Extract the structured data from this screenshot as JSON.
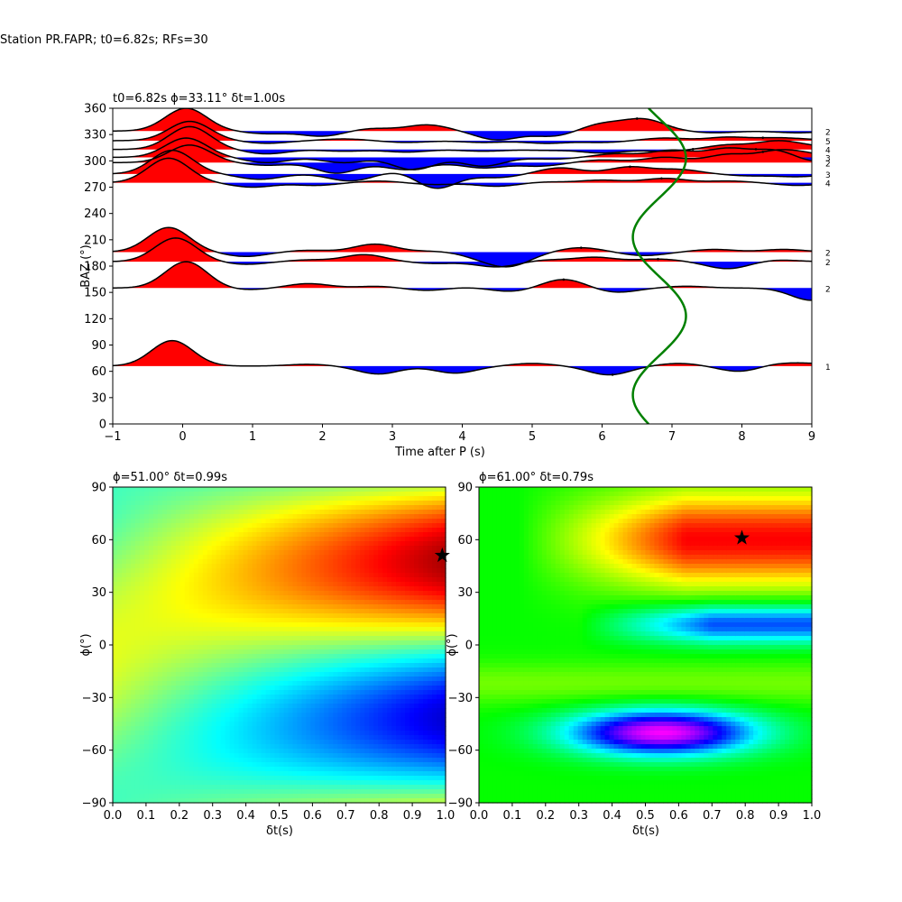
{
  "suptitle": "Station PR.FAPR; t0=6.82s; RFs=30",
  "chart_data": [
    {
      "type": "line",
      "title": "t0=6.82s ϕ=33.11° δt=1.00s",
      "xlabel": "Time after P (s)",
      "ylabel": "BAZ (°)",
      "xlim": [
        -1,
        9
      ],
      "ylim": [
        0,
        360
      ],
      "xticks": [
        "−1",
        "0",
        "1",
        "2",
        "3",
        "4",
        "5",
        "6",
        "7",
        "8",
        "9"
      ],
      "yticks": [
        "0",
        "30",
        "60",
        "90",
        "120",
        "150",
        "180",
        "210",
        "240",
        "270",
        "300",
        "330",
        "360"
      ],
      "fill_colors": {
        "positive": "#ff0000",
        "negative": "#0000ff",
        "trace": "#000000",
        "curve": "#008000"
      },
      "traces": [
        {
          "baz": 66,
          "count": "1",
          "pulse_amp": 29,
          "pulse_t": -0.15,
          "amps": [
            2,
            -9,
            -8,
            3,
            -10,
            3,
            -7,
            3,
            1,
            2
          ],
          "times": [
            1.8,
            2.8,
            3.9,
            5.0,
            6.1,
            7.1,
            8.0,
            8.4,
            8.8,
            9.0
          ],
          "pick": 6.15
        },
        {
          "baz": 155,
          "count": "2",
          "pulse_amp": 30,
          "pulse_t": 0.05,
          "amps": [
            -2,
            5,
            2,
            -3,
            1,
            -4,
            10,
            -5,
            2,
            -14
          ],
          "times": [
            0.9,
            1.8,
            2.8,
            3.5,
            4.0,
            4.7,
            5.45,
            6.2,
            7.2,
            9.0
          ],
          "pick": 5.45
        },
        {
          "baz": 185,
          "count": "2",
          "pulse_amp": 27,
          "pulse_t": -0.1,
          "amps": [
            -3,
            2,
            8,
            -2,
            -6,
            2,
            5,
            3,
            -8,
            2
          ],
          "times": [
            0.9,
            1.8,
            2.6,
            3.6,
            4.5,
            5.2,
            5.9,
            6.8,
            7.8,
            8.5
          ],
          "pick": 6.8
        },
        {
          "baz": 196,
          "count": "2",
          "pulse_amp": 28,
          "pulse_t": -0.2,
          "amps": [
            -5,
            2,
            9,
            1,
            -6,
            -14,
            5,
            -4,
            3,
            3
          ],
          "times": [
            0.9,
            1.8,
            2.75,
            3.6,
            4.3,
            4.7,
            5.7,
            6.6,
            7.6,
            8.6
          ],
          "pick": 5.7
        },
        {
          "baz": 275,
          "count": "4",
          "pulse_amp": 28,
          "pulse_t": -0.2,
          "amps": [
            -5,
            -3,
            2,
            -2,
            -4,
            1,
            3,
            5,
            2,
            -3
          ],
          "times": [
            1.0,
            1.9,
            2.8,
            3.6,
            4.5,
            5.2,
            6.0,
            6.9,
            7.8,
            8.8
          ],
          "pick": 6.85
        },
        {
          "baz": 285,
          "count": "3",
          "pulse_amp": 27,
          "pulse_t": -0.15,
          "amps": [
            -6,
            -8,
            5,
            -18,
            -4,
            7,
            8,
            5,
            -2,
            -3
          ],
          "times": [
            1.1,
            2.4,
            3.2,
            3.6,
            4.5,
            5.4,
            6.4,
            7.1,
            8.1,
            8.8
          ],
          "pick": 6.4
        },
        {
          "baz": 298,
          "count": "2",
          "pulse_amp": 20,
          "pulse_t": 0.1,
          "amps": [
            -3,
            -12,
            -8,
            -6,
            -4,
            3,
            6,
            9,
            12,
            8
          ],
          "times": [
            1.2,
            2.2,
            3.2,
            4.3,
            5.1,
            6.0,
            6.9,
            7.8,
            8.5,
            9.0
          ],
          "pick": 8.3
        },
        {
          "baz": 304,
          "count": "3",
          "pulse_amp": 22,
          "pulse_t": 0.05,
          "amps": [
            -6,
            -6,
            -14,
            -10,
            -2,
            4,
            8,
            10,
            9,
            -6
          ],
          "times": [
            1.2,
            2.3,
            3.3,
            4.3,
            5.3,
            6.2,
            7.0,
            7.8,
            8.5,
            9.0
          ],
          "pick": 8.2
        },
        {
          "baz": 313,
          "count": "4",
          "pulse_amp": 26,
          "pulse_t": 0.1,
          "amps": [
            -5,
            -2,
            -3,
            -2,
            -1,
            -4,
            -2,
            5,
            9,
            3
          ],
          "times": [
            1.2,
            2.3,
            3.2,
            4.3,
            5.2,
            6.0,
            6.9,
            7.8,
            8.5,
            9.0
          ],
          "pick": 7.3
        },
        {
          "baz": 323,
          "count": "5",
          "pulse_amp": 22,
          "pulse_t": 0.1,
          "amps": [
            -3,
            2,
            -2,
            -2,
            -3,
            -2,
            3,
            4,
            3,
            1
          ],
          "times": [
            1.2,
            2.3,
            3.2,
            4.3,
            5.2,
            6.0,
            6.9,
            7.8,
            8.5,
            9.0
          ],
          "pick": 8.3
        },
        {
          "baz": 334,
          "count": "2",
          "pulse_amp": 26,
          "pulse_t": 0.05,
          "amps": [
            -3,
            -6,
            3,
            7,
            -10,
            -6,
            8,
            13,
            -2,
            -2
          ],
          "times": [
            1.2,
            2.0,
            2.7,
            3.5,
            4.5,
            5.3,
            6.0,
            6.6,
            7.6,
            8.8
          ],
          "pick": 6.5
        }
      ],
      "curve_period_deg": 180,
      "curve_center_s": 6.82,
      "curve_amplitude_s": 0.38,
      "curve_peak_baz_deg": 123
    },
    {
      "type": "heatmap",
      "title": "ϕ=51.00° δt=0.99s",
      "xlabel": "δt(s)",
      "ylabel": "ϕ(°)",
      "xlim": [
        0.0,
        1.0
      ],
      "ylim": [
        -90,
        90
      ],
      "xticks": [
        "0.0",
        "0.1",
        "0.2",
        "0.3",
        "0.4",
        "0.5",
        "0.6",
        "0.7",
        "0.8",
        "0.9",
        "1.0"
      ],
      "yticks": [
        "−90",
        "−60",
        "−30",
        "0",
        "30",
        "60",
        "90"
      ],
      "colormap": "jet",
      "marker": {
        "dt": 0.99,
        "phi": 51,
        "symbol": "star"
      }
    },
    {
      "type": "heatmap",
      "title": "ϕ=61.00° δt=0.79s",
      "xlabel": "δt(s)",
      "ylabel": "ϕ(°)",
      "xlim": [
        0.0,
        1.0
      ],
      "ylim": [
        -90,
        90
      ],
      "xticks": [
        "0.0",
        "0.1",
        "0.2",
        "0.3",
        "0.4",
        "0.5",
        "0.6",
        "0.7",
        "0.8",
        "0.9",
        "1.0"
      ],
      "yticks": [
        "−90",
        "−60",
        "−30",
        "0",
        "30",
        "60",
        "90"
      ],
      "colormap": "hsv",
      "marker": {
        "dt": 0.79,
        "phi": 61,
        "symbol": "star"
      }
    }
  ]
}
